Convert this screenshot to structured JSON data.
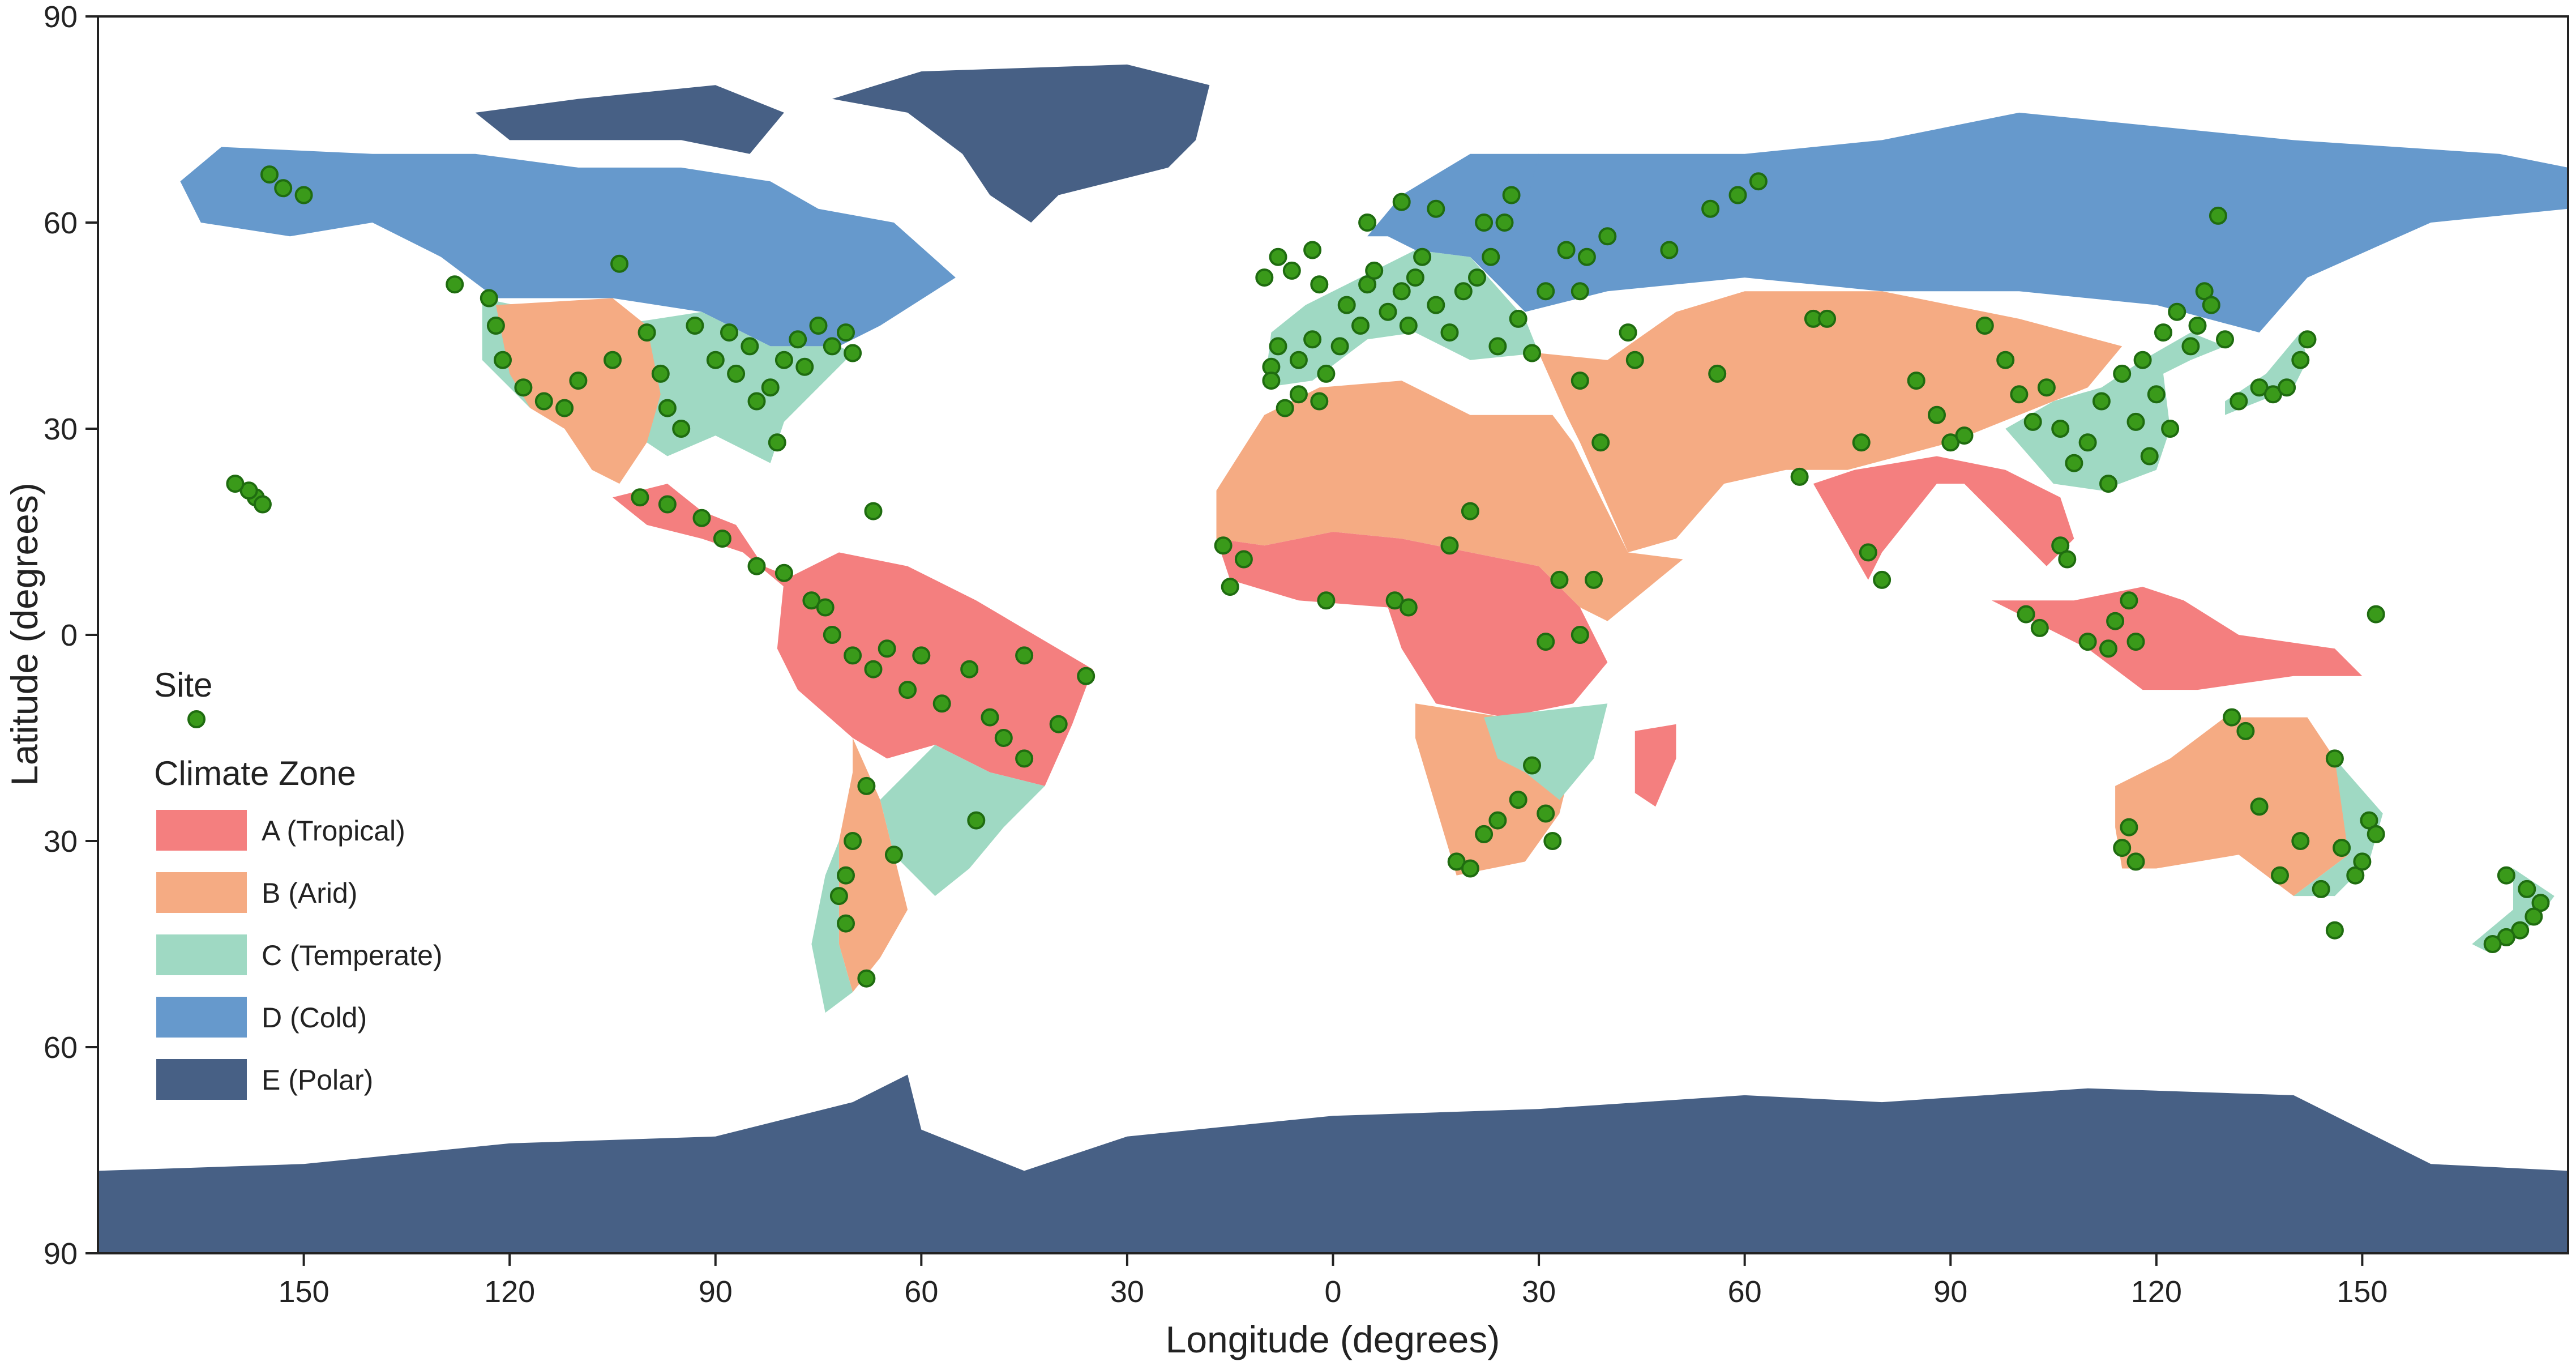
{
  "axes": {
    "xlabel": "Longitude (degrees)",
    "ylabel": "Latitude (degrees)",
    "x_ticks": [
      "150",
      "120",
      "90",
      "60",
      "30",
      "0",
      "30",
      "60",
      "90",
      "120",
      "150"
    ],
    "y_ticks": [
      "90",
      "60",
      "30",
      "0",
      "30",
      "60",
      "90"
    ]
  },
  "legend": {
    "site_title": "Site",
    "zone_title": "Climate Zone",
    "zones": [
      {
        "label": "A (Tropical)",
        "color": "#F47F7F"
      },
      {
        "label": "B (Arid)",
        "color": "#F5AB83"
      },
      {
        "label": "C (Temperate)",
        "color": "#9FD9C3"
      },
      {
        "label": "D (Cold)",
        "color": "#6699CC"
      },
      {
        "label": "E (Polar)",
        "color": "#476085"
      }
    ],
    "site_color": "#3A9A1A"
  },
  "chart_data": {
    "type": "scatter",
    "xlim": [
      -180,
      180
    ],
    "ylim": [
      -90,
      90
    ],
    "grid": false,
    "legend_position": "left",
    "sites": [
      [
        -155,
        67
      ],
      [
        -153,
        65
      ],
      [
        -150,
        64
      ],
      [
        -157,
        20
      ],
      [
        -158,
        21
      ],
      [
        -160,
        22
      ],
      [
        -156,
        19
      ],
      [
        -128,
        51
      ],
      [
        -123,
        49
      ],
      [
        -122,
        45
      ],
      [
        -121,
        40
      ],
      [
        -118,
        36
      ],
      [
        -115,
        34
      ],
      [
        -112,
        33
      ],
      [
        -110,
        37
      ],
      [
        -105,
        40
      ],
      [
        -104,
        54
      ],
      [
        -100,
        44
      ],
      [
        -98,
        38
      ],
      [
        -97,
        33
      ],
      [
        -95,
        30
      ],
      [
        -93,
        45
      ],
      [
        -90,
        40
      ],
      [
        -88,
        44
      ],
      [
        -87,
        38
      ],
      [
        -85,
        42
      ],
      [
        -84,
        34
      ],
      [
        -82,
        36
      ],
      [
        -81,
        28
      ],
      [
        -80,
        40
      ],
      [
        -78,
        43
      ],
      [
        -77,
        39
      ],
      [
        -75,
        45
      ],
      [
        -73,
        42
      ],
      [
        -71,
        44
      ],
      [
        -70,
        41
      ],
      [
        -101,
        20
      ],
      [
        -97,
        19
      ],
      [
        -92,
        17
      ],
      [
        -89,
        14
      ],
      [
        -84,
        10
      ],
      [
        -80,
        9
      ],
      [
        -76,
        5
      ],
      [
        -74,
        4
      ],
      [
        -67,
        18
      ],
      [
        -73,
        0
      ],
      [
        -70,
        -3
      ],
      [
        -67,
        -5
      ],
      [
        -65,
        -2
      ],
      [
        -62,
        -8
      ],
      [
        -60,
        -3
      ],
      [
        -57,
        -10
      ],
      [
        -53,
        -5
      ],
      [
        -50,
        -12
      ],
      [
        -48,
        -15
      ],
      [
        -45,
        -3
      ],
      [
        -40,
        -13
      ],
      [
        -36,
        -6
      ],
      [
        -45,
        -18
      ],
      [
        -52,
        -27
      ],
      [
        -64,
        -32
      ],
      [
        -68,
        -22
      ],
      [
        -70,
        -30
      ],
      [
        -71,
        -35
      ],
      [
        -72,
        -38
      ],
      [
        -71,
        -42
      ],
      [
        -68,
        -50
      ],
      [
        -9,
        39
      ],
      [
        -8,
        42
      ],
      [
        -5,
        40
      ],
      [
        -3,
        43
      ],
      [
        -1,
        38
      ],
      [
        1,
        42
      ],
      [
        2,
        48
      ],
      [
        4,
        45
      ],
      [
        5,
        51
      ],
      [
        6,
        53
      ],
      [
        8,
        47
      ],
      [
        10,
        50
      ],
      [
        11,
        45
      ],
      [
        12,
        52
      ],
      [
        13,
        55
      ],
      [
        15,
        48
      ],
      [
        17,
        44
      ],
      [
        19,
        50
      ],
      [
        21,
        52
      ],
      [
        23,
        55
      ],
      [
        25,
        60
      ],
      [
        27,
        46
      ],
      [
        29,
        41
      ],
      [
        31,
        50
      ],
      [
        34,
        56
      ],
      [
        37,
        55
      ],
      [
        40,
        58
      ],
      [
        43,
        44
      ],
      [
        49,
        56
      ],
      [
        55,
        62
      ],
      [
        59,
        64
      ],
      [
        62,
        66
      ],
      [
        26,
        64
      ],
      [
        22,
        60
      ],
      [
        15,
        62
      ],
      [
        10,
        63
      ],
      [
        5,
        60
      ],
      [
        -2,
        51
      ],
      [
        -3,
        56
      ],
      [
        -6,
        53
      ],
      [
        -9,
        37
      ],
      [
        -7,
        33
      ],
      [
        -5,
        35
      ],
      [
        -2,
        34
      ],
      [
        -16,
        13
      ],
      [
        -15,
        7
      ],
      [
        -13,
        11
      ],
      [
        -1,
        5
      ],
      [
        9,
        5
      ],
      [
        11,
        4
      ],
      [
        17,
        13
      ],
      [
        20,
        18
      ],
      [
        33,
        8
      ],
      [
        38,
        8
      ],
      [
        36,
        0
      ],
      [
        31,
        -1
      ],
      [
        18,
        -33
      ],
      [
        20,
        -34
      ],
      [
        22,
        -29
      ],
      [
        24,
        -27
      ],
      [
        27,
        -24
      ],
      [
        29,
        -19
      ],
      [
        31,
        -26
      ],
      [
        32,
        -30
      ],
      [
        36,
        37
      ],
      [
        39,
        28
      ],
      [
        56,
        38
      ],
      [
        68,
        23
      ],
      [
        70,
        46
      ],
      [
        72,
        46
      ],
      [
        77,
        28
      ],
      [
        78,
        12
      ],
      [
        80,
        8
      ],
      [
        85,
        37
      ],
      [
        88,
        32
      ],
      [
        90,
        28
      ],
      [
        92,
        29
      ],
      [
        95,
        45
      ],
      [
        98,
        40
      ],
      [
        100,
        35
      ],
      [
        102,
        31
      ],
      [
        104,
        36
      ],
      [
        106,
        30
      ],
      [
        108,
        25
      ],
      [
        110,
        28
      ],
      [
        112,
        34
      ],
      [
        113,
        22
      ],
      [
        115,
        38
      ],
      [
        117,
        31
      ],
      [
        118,
        40
      ],
      [
        119,
        26
      ],
      [
        120,
        35
      ],
      [
        121,
        44
      ],
      [
        122,
        30
      ],
      [
        123,
        47
      ],
      [
        125,
        42
      ],
      [
        126,
        45
      ],
      [
        127,
        50
      ],
      [
        128,
        48
      ],
      [
        130,
        43
      ],
      [
        129,
        61
      ],
      [
        132,
        34
      ],
      [
        135,
        36
      ],
      [
        137,
        35
      ],
      [
        139,
        36
      ],
      [
        141,
        40
      ],
      [
        142,
        43
      ],
      [
        101,
        3
      ],
      [
        103,
        1
      ],
      [
        110,
        -1
      ],
      [
        113,
        -2
      ],
      [
        114,
        2
      ],
      [
        116,
        5
      ],
      [
        117,
        -1
      ],
      [
        106,
        13
      ],
      [
        107,
        11
      ],
      [
        115,
        -31
      ],
      [
        117,
        -33
      ],
      [
        116,
        -28
      ],
      [
        131,
        -12
      ],
      [
        133,
        -14
      ],
      [
        135,
        -25
      ],
      [
        138,
        -35
      ],
      [
        141,
        -30
      ],
      [
        144,
        -37
      ],
      [
        146,
        -18
      ],
      [
        147,
        -31
      ],
      [
        149,
        -35
      ],
      [
        150,
        -33
      ],
      [
        151,
        -27
      ],
      [
        152,
        -29
      ],
      [
        146,
        -43
      ],
      [
        171,
        -35
      ],
      [
        174,
        -37
      ],
      [
        176,
        -39
      ],
      [
        175,
        -41
      ],
      [
        173,
        -43
      ],
      [
        171,
        -44
      ],
      [
        169,
        -45
      ],
      [
        152,
        3
      ],
      [
        -10,
        52
      ],
      [
        -8,
        55
      ],
      [
        24,
        42
      ],
      [
        36,
        50
      ],
      [
        44,
        40
      ]
    ]
  }
}
